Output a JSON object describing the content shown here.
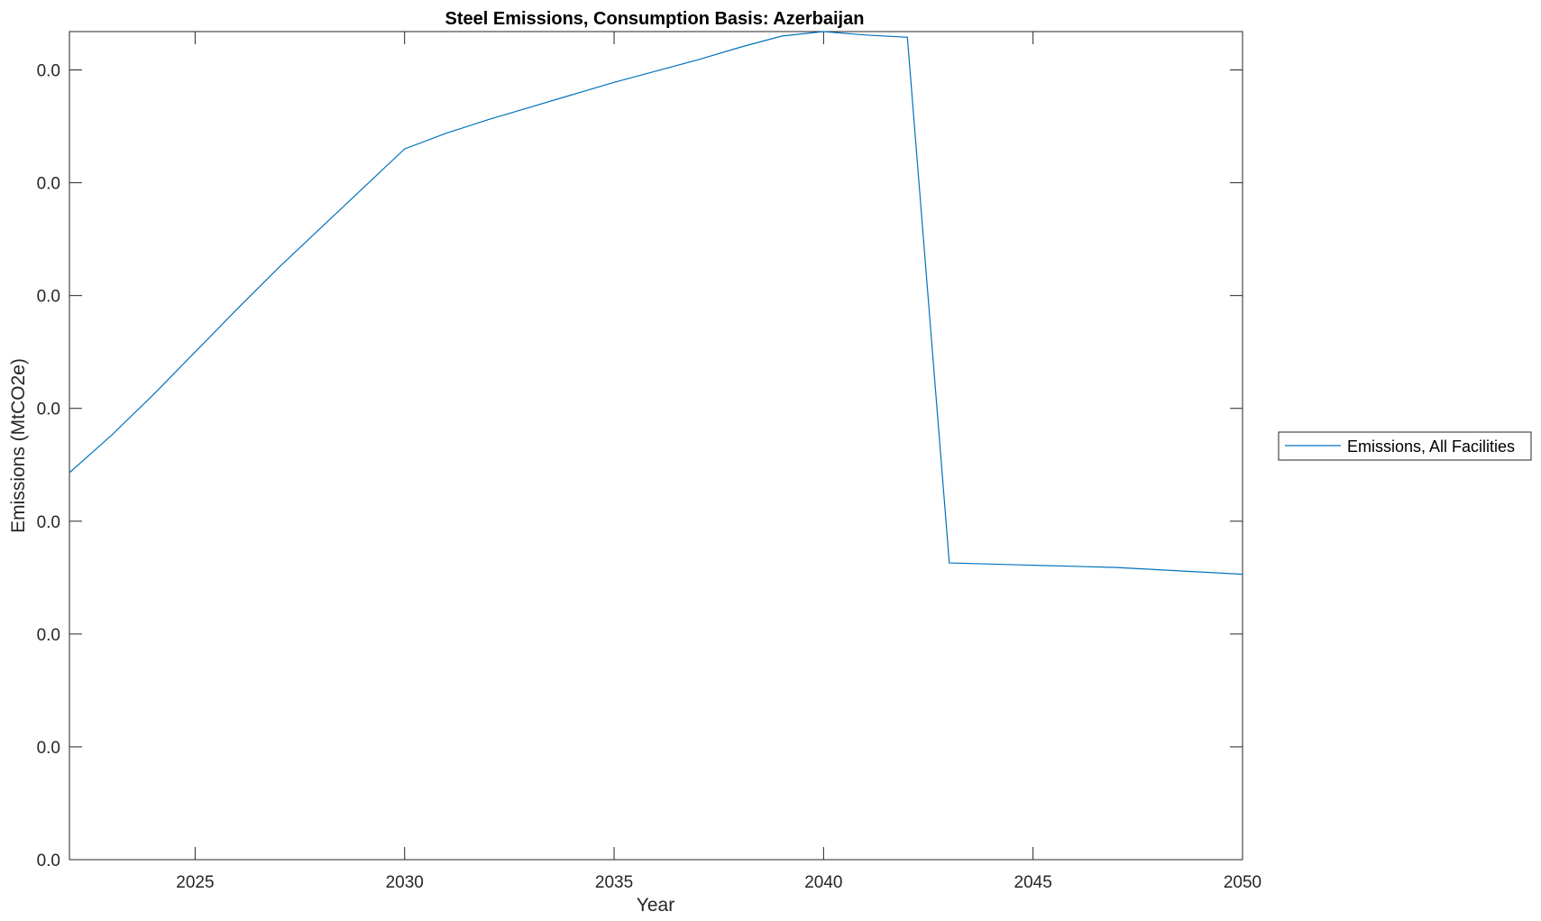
{
  "chart_data": {
    "type": "line",
    "title": "Steel Emissions, Consumption Basis: Azerbaijan",
    "xlabel": "Year",
    "ylabel": "Emissions (MtCO2e)",
    "xlim": [
      2022,
      2050
    ],
    "ylim": [
      0,
      0.00734
    ],
    "xticks": [
      2025,
      2030,
      2035,
      2040,
      2045,
      2050
    ],
    "yticks": [
      0,
      0.001,
      0.002,
      0.003,
      0.004,
      0.005,
      0.006,
      0.007
    ],
    "ytick_labels": [
      "0.0",
      "0.0",
      "0.0",
      "0.0",
      "0.0",
      "0.0",
      "0.0",
      "0.0"
    ],
    "grid": false,
    "legend_position": "outside-right",
    "series": [
      {
        "name": "Emissions, All Facilities",
        "color": "#0072BD",
        "x": [
          2022,
          2023,
          2024,
          2025,
          2026,
          2027,
          2028,
          2029,
          2030,
          2031,
          2032,
          2033,
          2034,
          2035,
          2036,
          2037,
          2038,
          2039,
          2040,
          2041,
          2042,
          2043,
          2044,
          2045,
          2046,
          2047,
          2048,
          2049,
          2050
        ],
        "y": [
          0.00343,
          0.00376,
          0.00412,
          0.0045,
          0.00488,
          0.00525,
          0.0056,
          0.00595,
          0.0063,
          0.00644,
          0.00656,
          0.00667,
          0.00678,
          0.00689,
          0.00699,
          0.00709,
          0.0072,
          0.0073,
          0.00734,
          0.00731,
          0.00729,
          0.00263,
          0.00262,
          0.00261,
          0.0026,
          0.00259,
          0.00257,
          0.00255,
          0.00253
        ]
      }
    ]
  }
}
